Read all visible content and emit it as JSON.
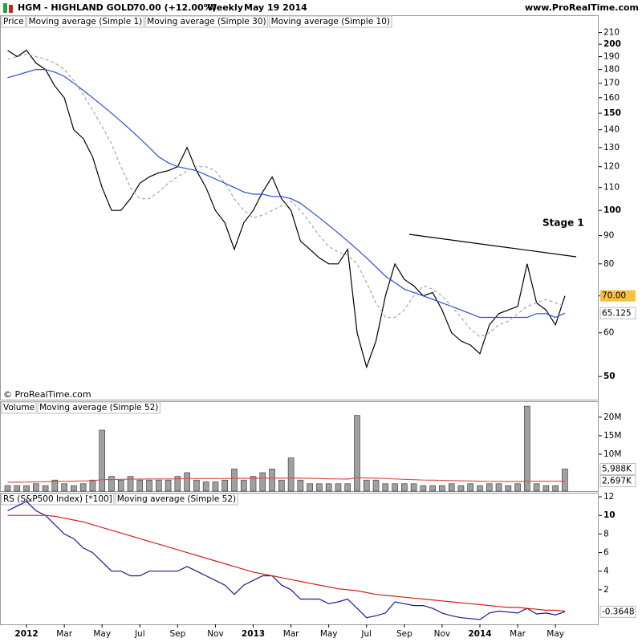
{
  "header": {
    "title": "HGM - HIGHLAND GOLD",
    "change": "70.00 (+12.00%)",
    "period": "Weekly",
    "date": "May 19 2014",
    "source": "www.ProRealTime.com",
    "copyright": "© ProRealTime.com",
    "annotation": "Stage 1"
  },
  "chart_data": [
    {
      "type": "line",
      "label": "Price",
      "log": true,
      "ylim": [
        45.4,
        225
      ],
      "yticks": [
        50,
        60,
        70,
        80,
        90,
        100,
        110,
        120,
        130,
        140,
        150,
        160,
        170,
        180,
        190,
        200,
        210
      ],
      "categories": [
        null,
        null,
        "2012",
        null,
        null,
        null,
        "Mar",
        null,
        null,
        null,
        "May",
        null,
        null,
        null,
        "Jul",
        null,
        null,
        null,
        "Sep",
        null,
        null,
        null,
        "Nov",
        null,
        null,
        null,
        "2013",
        null,
        null,
        null,
        "Mar",
        null,
        null,
        null,
        "May",
        null,
        null,
        null,
        "Jul",
        null,
        null,
        null,
        "Sep",
        null,
        null,
        null,
        "Nov",
        null,
        null,
        null,
        "2014",
        null,
        null,
        null,
        "Mar",
        null,
        null,
        null,
        "May",
        null
      ],
      "series": [
        {
          "name": "Moving average (Simple 1)",
          "color": "#000000",
          "last_label": "70.00",
          "label_background": "#f5c242",
          "values": [
            195,
            190,
            195,
            185,
            180,
            168,
            160,
            140,
            135,
            125,
            110,
            100,
            100,
            105,
            112,
            115,
            117,
            118,
            120,
            130,
            118,
            110,
            100,
            95,
            85,
            95,
            100,
            108,
            115,
            105,
            100,
            88,
            85,
            82,
            80,
            80,
            85,
            60,
            52,
            58,
            70,
            80,
            75,
            73,
            70,
            71,
            66,
            60,
            58,
            57,
            55,
            62,
            65,
            66,
            67,
            80,
            68,
            66,
            62,
            70
          ]
        },
        {
          "name": "Moving average (Simple 30)",
          "color": "#2a4fd6",
          "last_label": "65.125",
          "values": [
            174,
            176,
            178,
            180,
            180,
            178,
            175,
            170,
            165,
            160,
            155,
            150,
            145,
            140,
            135,
            130,
            125,
            122,
            120,
            119,
            118,
            116,
            114,
            112,
            110,
            108,
            107,
            107,
            106,
            106,
            105,
            103,
            100,
            97,
            94,
            91,
            88,
            85,
            82,
            79,
            76,
            74,
            72,
            71,
            70,
            69,
            68,
            67,
            66,
            65,
            64,
            64,
            64,
            64,
            64,
            64,
            65,
            65,
            64,
            65.125
          ]
        },
        {
          "name": "Moving average (Simple 10)",
          "color": "#a8a8a8",
          "dashed": true,
          "values": [
            188,
            190,
            192,
            190,
            188,
            185,
            180,
            172,
            162,
            152,
            142,
            132,
            120,
            110,
            105,
            105,
            108,
            112,
            115,
            118,
            120,
            120,
            118,
            112,
            105,
            100,
            97,
            98,
            100,
            102,
            104,
            100,
            95,
            90,
            86,
            84,
            83,
            80,
            74,
            68,
            64,
            64,
            66,
            70,
            73,
            72,
            70,
            67,
            64,
            61,
            59,
            60,
            62,
            63,
            65,
            67,
            68,
            69,
            68,
            67
          ]
        }
      ]
    },
    {
      "type": "bar",
      "label": "Volume",
      "color": "#a0a0a0",
      "last_label": "5,988K",
      "ylim": [
        0,
        24100000
      ],
      "yticks": [
        {
          "value": 10000000,
          "label": "10M"
        },
        {
          "value": 15000000,
          "label": "15M"
        },
        {
          "value": 20000000,
          "label": "20M"
        }
      ],
      "values": [
        1500000,
        1500000,
        1500000,
        2000000,
        1500000,
        3000000,
        2000000,
        1500000,
        2000000,
        3000000,
        16500000,
        4000000,
        3000000,
        4000000,
        3000000,
        3000000,
        3000000,
        3000000,
        4000000,
        5000000,
        3000000,
        2500000,
        2500000,
        3000000,
        6000000,
        3000000,
        4000000,
        5000000,
        6000000,
        3000000,
        9000000,
        3000000,
        2000000,
        2000000,
        2000000,
        2000000,
        2000000,
        20500000,
        3000000,
        3000000,
        2000000,
        2000000,
        2000000,
        2000000,
        1500000,
        1500000,
        1500000,
        2000000,
        1500000,
        2000000,
        1500000,
        2000000,
        2000000,
        1500000,
        2000000,
        23000000,
        2000000,
        1500000,
        1500000,
        5988000
      ],
      "series": [
        {
          "name": "Moving average (Simple 52)",
          "color": "#d9534f",
          "last_label": "2,697K",
          "values": [
            2400000,
            2400000,
            2450000,
            2500000,
            2550000,
            2600000,
            2650000,
            2700000,
            2750000,
            2800000,
            3100000,
            3150000,
            3200000,
            3250000,
            3250000,
            3300000,
            3300000,
            3300000,
            3350000,
            3400000,
            3400000,
            3400000,
            3400000,
            3400000,
            3450000,
            3450000,
            3450000,
            3500000,
            3500000,
            3500000,
            3550000,
            3500000,
            3450000,
            3400000,
            3350000,
            3300000,
            3250000,
            3600000,
            3550000,
            3500000,
            3400000,
            3300000,
            3200000,
            3100000,
            3000000,
            2950000,
            2900000,
            2850000,
            2800000,
            2750000,
            2700000,
            2650000,
            2650000,
            2600000,
            2600000,
            2700000,
            2700000,
            2700000,
            2690000,
            2697000
          ]
        }
      ]
    },
    {
      "type": "line",
      "label": "RS (S&P500 Index) [*100]",
      "ylim": [
        -1.72,
        12.35
      ],
      "yticks": [
        2,
        4,
        6,
        8,
        10,
        12
      ],
      "series": [
        {
          "name": "RS (S&P500 Index) [*100]",
          "color": "#1a1a8c",
          "last_label": "-0.3648",
          "values": [
            10.5,
            11,
            11.5,
            10.5,
            10,
            9,
            8,
            7.5,
            6.5,
            6,
            5,
            4,
            4,
            3.5,
            3.5,
            4,
            4,
            4,
            4,
            4.5,
            4,
            3.5,
            3,
            2.5,
            1.5,
            2.5,
            3,
            3.5,
            3.5,
            2.5,
            2,
            1,
            1,
            1,
            0.5,
            0.7,
            1,
            0,
            -1,
            -0.8,
            -0.5,
            0.7,
            0.5,
            0.3,
            0.3,
            0,
            -0.5,
            -0.8,
            -1,
            -1.1,
            -1.2,
            -0.5,
            -0.3,
            -0.4,
            -0.5,
            0,
            -0.6,
            -0.5,
            -0.7,
            -0.3648
          ]
        },
        {
          "name": "Moving average (Simple 52)",
          "color": "#d42020",
          "values": [
            10,
            10,
            10,
            10,
            10,
            9.9,
            9.7,
            9.5,
            9.3,
            9,
            8.7,
            8.4,
            8.1,
            7.8,
            7.5,
            7.2,
            6.9,
            6.6,
            6.3,
            6,
            5.7,
            5.4,
            5.1,
            4.8,
            4.5,
            4.2,
            3.9,
            3.7,
            3.5,
            3.3,
            3.1,
            2.9,
            2.7,
            2.5,
            2.3,
            2.1,
            2,
            1.9,
            1.7,
            1.5,
            1.4,
            1.3,
            1.2,
            1.1,
            1,
            0.9,
            0.8,
            0.7,
            0.6,
            0.5,
            0.4,
            0.3,
            0.2,
            0.1,
            0.1,
            0,
            -0.1,
            -0.2,
            -0.2,
            -0.3
          ]
        }
      ]
    }
  ]
}
